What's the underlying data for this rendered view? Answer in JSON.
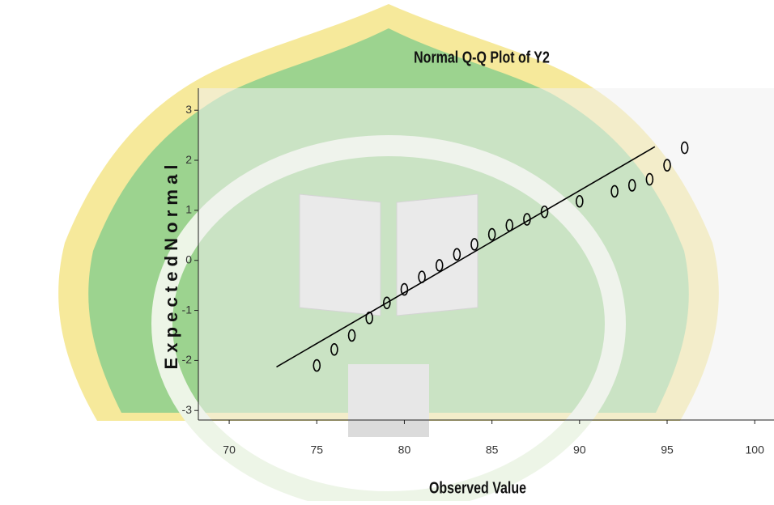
{
  "chart_data": {
    "type": "scatter",
    "title": "Normal Q-Q Plot of Y2",
    "x_label": "Observed Value",
    "y_label": "E x p e c t e d   N o r m a l",
    "x": [
      75,
      76,
      77,
      78,
      79,
      80,
      81,
      82,
      83,
      84,
      85,
      86,
      87,
      88,
      90,
      92,
      93,
      94,
      95,
      96
    ],
    "values": [
      -2.1,
      -1.78,
      -1.5,
      -1.15,
      -0.85,
      -0.58,
      -0.33,
      -0.1,
      0.12,
      0.32,
      0.52,
      0.7,
      0.82,
      0.97,
      1.18,
      1.38,
      1.5,
      1.62,
      1.9,
      2.25
    ],
    "color": "#000000",
    "reference_line": {
      "x": [
        72.7,
        94.3
      ],
      "y": [
        -2.13,
        2.27
      ],
      "color": "#000000"
    },
    "xlim": [
      68.24,
      101.1
    ],
    "xticks": [
      70,
      75,
      80,
      85,
      90,
      95,
      100
    ],
    "ylim": [
      -3.19,
      3.44
    ],
    "yticks": [
      -3,
      -2,
      -1,
      0,
      1,
      2,
      3
    ]
  }
}
